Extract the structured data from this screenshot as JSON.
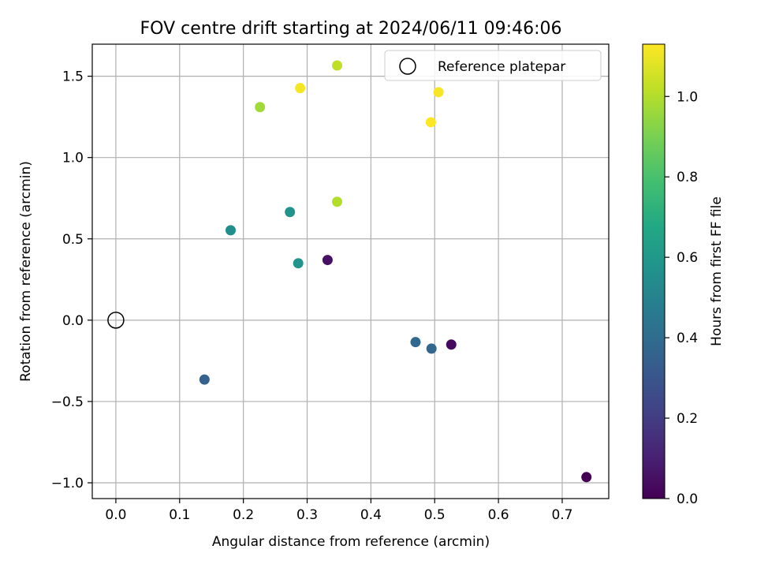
{
  "chart_data": {
    "type": "scatter",
    "title": "FOV centre drift starting at 2024/06/11 09:46:06",
    "xlabel": "Angular distance from reference (arcmin)",
    "ylabel": "Rotation from reference (arcmin)",
    "xlim": [
      -0.037,
      0.773
    ],
    "ylim": [
      -1.097,
      1.697
    ],
    "xticks": [
      0.0,
      0.1,
      0.2,
      0.3,
      0.4,
      0.5,
      0.6,
      0.7
    ],
    "xtick_labels": [
      "0.0",
      "0.1",
      "0.2",
      "0.3",
      "0.4",
      "0.5",
      "0.6",
      "0.7"
    ],
    "yticks": [
      -1.0,
      -0.5,
      0.0,
      0.5,
      1.0,
      1.5
    ],
    "ytick_labels": [
      "−1.0",
      "−0.5",
      "0.0",
      "0.5",
      "1.0",
      "1.5"
    ],
    "grid": true,
    "legend": {
      "position": "top-right",
      "entries": [
        "Reference platepar"
      ]
    },
    "reference_point": {
      "x": 0.0,
      "y": 0.0
    },
    "colorbar": {
      "label": "Hours from first FF file",
      "colormap": "viridis",
      "range": [
        0.0,
        1.13
      ],
      "ticks": [
        0.0,
        0.2,
        0.4,
        0.6,
        0.8,
        1.0
      ],
      "tick_labels": [
        "0.0",
        "0.2",
        "0.4",
        "0.6",
        "0.8",
        "1.0"
      ]
    },
    "points": [
      {
        "x": 0.738,
        "y": -0.965,
        "c": 0.0
      },
      {
        "x": 0.526,
        "y": -0.15,
        "c": 0.03
      },
      {
        "x": 0.332,
        "y": 0.37,
        "c": 0.05
      },
      {
        "x": 0.139,
        "y": -0.365,
        "c": 0.35
      },
      {
        "x": 0.495,
        "y": -0.175,
        "c": 0.37
      },
      {
        "x": 0.47,
        "y": -0.135,
        "c": 0.38
      },
      {
        "x": 0.18,
        "y": 0.553,
        "c": 0.55
      },
      {
        "x": 0.273,
        "y": 0.665,
        "c": 0.57
      },
      {
        "x": 0.286,
        "y": 0.35,
        "c": 0.58
      },
      {
        "x": 0.226,
        "y": 1.31,
        "c": 0.97
      },
      {
        "x": 0.347,
        "y": 0.728,
        "c": 1.0
      },
      {
        "x": 0.347,
        "y": 1.566,
        "c": 1.02
      },
      {
        "x": 0.289,
        "y": 1.427,
        "c": 1.11
      },
      {
        "x": 0.506,
        "y": 1.402,
        "c": 1.12
      },
      {
        "x": 0.494,
        "y": 1.217,
        "c": 1.13
      }
    ]
  }
}
